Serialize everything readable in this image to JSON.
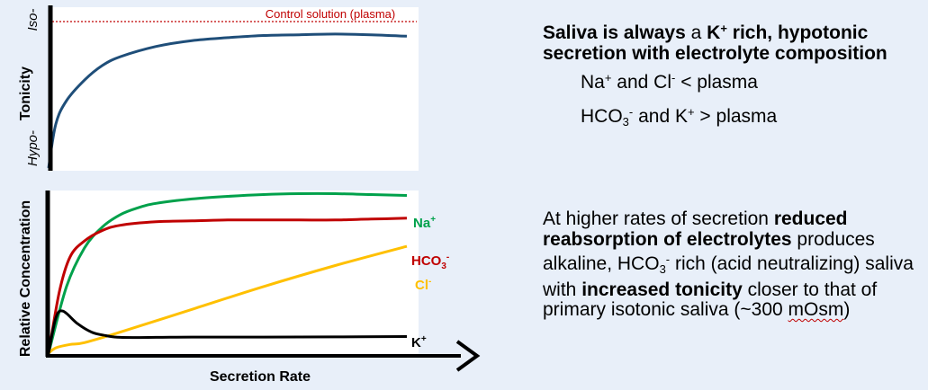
{
  "chart_data": [
    {
      "type": "line",
      "ylabel": "Tonicity",
      "y_tick_labels": [
        "Hypo-",
        "Iso-"
      ],
      "reference_line": {
        "label": "Control solution (plasma)",
        "value": 1.0,
        "color": "#c00000"
      },
      "series": [
        {
          "name": "",
          "color": "#1f4e79",
          "x": [
            0,
            0.02,
            0.05,
            0.1,
            0.15,
            0.2,
            0.3,
            0.4,
            0.5,
            0.6,
            0.7,
            0.8,
            0.9,
            1.0
          ],
          "y": [
            0.0,
            0.3,
            0.46,
            0.6,
            0.7,
            0.76,
            0.83,
            0.87,
            0.89,
            0.905,
            0.91,
            0.915,
            0.91,
            0.9
          ]
        }
      ],
      "xlim": [
        0,
        1
      ],
      "ylim": [
        0,
        1.05
      ]
    },
    {
      "type": "line",
      "xlabel": "Secretion Rate",
      "ylabel": "Relative Concentration",
      "xlim": [
        0,
        1
      ],
      "ylim": [
        0,
        1
      ],
      "series": [
        {
          "name": "Na⁺",
          "color": "#00a14b",
          "x": [
            0,
            0.05,
            0.1,
            0.15,
            0.2,
            0.25,
            0.3,
            0.4,
            0.5,
            0.6,
            0.7,
            0.8,
            0.9,
            1.0
          ],
          "y": [
            0.0,
            0.38,
            0.6,
            0.72,
            0.79,
            0.83,
            0.855,
            0.88,
            0.895,
            0.905,
            0.91,
            0.91,
            0.905,
            0.9
          ]
        },
        {
          "name": "HCO₃⁻",
          "color": "#c00000",
          "x": [
            0,
            0.03,
            0.06,
            0.1,
            0.15,
            0.2,
            0.3,
            0.4,
            0.5,
            0.6,
            0.7,
            0.8,
            0.9,
            1.0
          ],
          "y": [
            0.0,
            0.35,
            0.55,
            0.64,
            0.7,
            0.73,
            0.75,
            0.755,
            0.76,
            0.76,
            0.76,
            0.76,
            0.765,
            0.77
          ]
        },
        {
          "name": "Cl⁻",
          "color": "#ffc000",
          "x": [
            0,
            0.02,
            0.06,
            0.1,
            0.2,
            0.4,
            0.6,
            0.8,
            1.0
          ],
          "y": [
            0.0,
            0.03,
            0.05,
            0.06,
            0.12,
            0.25,
            0.38,
            0.5,
            0.61
          ]
        },
        {
          "name": "K⁺",
          "color": "#000000",
          "x": [
            0,
            0.02,
            0.04,
            0.08,
            0.12,
            0.16,
            0.2,
            0.3,
            0.4,
            0.6,
            0.8,
            1.0
          ],
          "y": [
            0.0,
            0.2,
            0.24,
            0.17,
            0.12,
            0.1,
            0.09,
            0.09,
            0.092,
            0.092,
            0.093,
            0.095
          ]
        }
      ]
    }
  ],
  "text": {
    "summary_line1_bold": "Saliva is always",
    "summary_line1_normal": "a",
    "summary_line1_k": "K",
    "summary_plus": "+",
    "summary_line1_rest": "rich, hypotonic secretion with electrolyte composition",
    "na": "Na",
    "and_cl": "and Cl",
    "minus": "-",
    "lt_plasma": "< plasma",
    "hco": "HCO",
    "three": "3",
    "and_k": "and K",
    "gt_plasma": "> plasma",
    "rates_1": "At higher rates of secretion",
    "rates_bold1": "reduced reabsorption of electrolytes",
    "rates_2": "produces alkaline, HCO",
    "rates_3": "rich (acid neutralizing) saliva with",
    "rates_bold2": "increased tonicity",
    "rates_4": "closer to that of primary isotonic saliva (~300",
    "rates_5": "mOsm",
    "rates_6": ")"
  }
}
